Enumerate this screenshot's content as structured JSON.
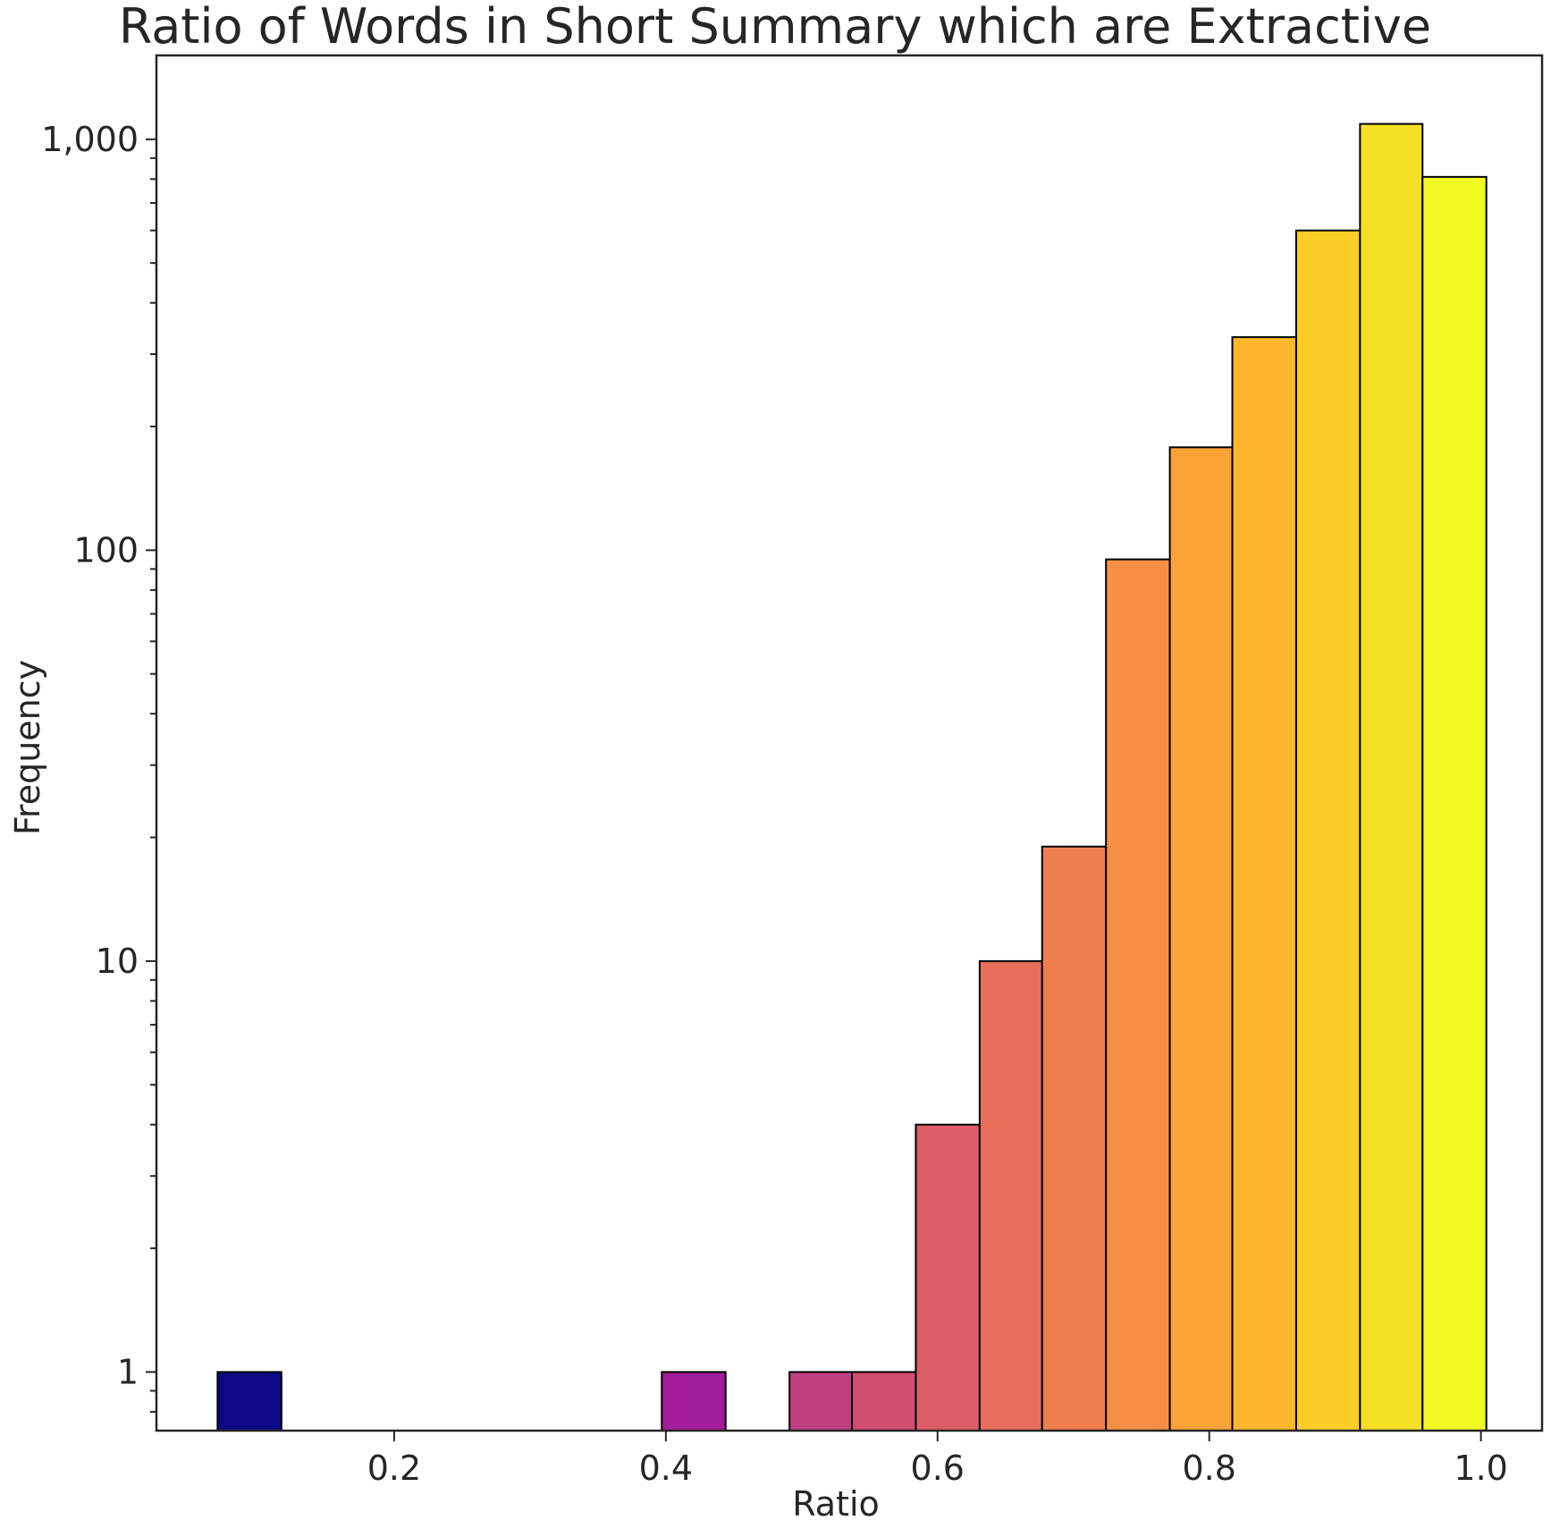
{
  "chart_data": {
    "type": "bar",
    "title": "Ratio of Words in Short Summary which are Extractive",
    "xlabel": "Ratio",
    "ylabel": "Frequency",
    "yscale": "log",
    "xlim": [
      0.025,
      1.045
    ],
    "ylim": [
      0.72,
      1600
    ],
    "x_ticks": [
      0.2,
      0.4,
      0.6,
      0.8,
      1.0
    ],
    "x_tick_labels": [
      "0.2",
      "0.4",
      "0.6",
      "0.8",
      "1.0"
    ],
    "y_ticks": [
      1,
      10,
      100,
      1000
    ],
    "y_tick_labels": [
      "1",
      "10",
      "100",
      "1,000"
    ],
    "grid": false,
    "colormap": "plasma",
    "bins": [
      {
        "x0": 0.07,
        "x1": 0.117,
        "value": 1,
        "color": "#0d0887"
      },
      {
        "x0": 0.397,
        "x1": 0.444,
        "value": 1,
        "color": "#a21d9a"
      },
      {
        "x0": 0.491,
        "x1": 0.537,
        "value": 1,
        "color": "#c03f80"
      },
      {
        "x0": 0.537,
        "x1": 0.584,
        "value": 1,
        "color": "#d14e72"
      },
      {
        "x0": 0.584,
        "x1": 0.631,
        "value": 4,
        "color": "#dd5e66"
      },
      {
        "x0": 0.631,
        "x1": 0.677,
        "value": 10,
        "color": "#e76e5b"
      },
      {
        "x0": 0.677,
        "x1": 0.724,
        "value": 19,
        "color": "#f07f4f"
      },
      {
        "x0": 0.724,
        "x1": 0.771,
        "value": 95,
        "color": "#f79044"
      },
      {
        "x0": 0.771,
        "x1": 0.817,
        "value": 178,
        "color": "#fca338"
      },
      {
        "x0": 0.817,
        "x1": 0.864,
        "value": 330,
        "color": "#feb72d"
      },
      {
        "x0": 0.864,
        "x1": 0.911,
        "value": 600,
        "color": "#fccd25"
      },
      {
        "x0": 0.911,
        "x1": 0.957,
        "value": 1090,
        "color": "#f6e026"
      },
      {
        "x0": 0.957,
        "x1": 1.004,
        "value": 810,
        "color": "#f0f921"
      }
    ]
  }
}
